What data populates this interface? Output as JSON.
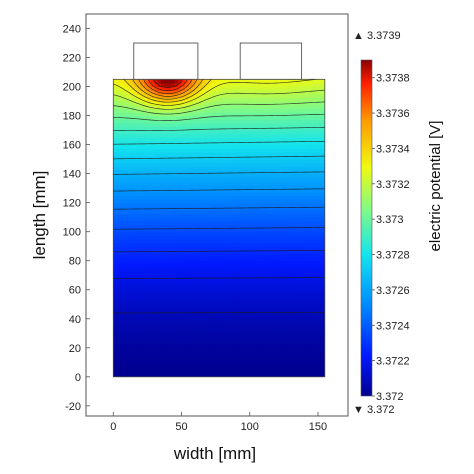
{
  "chart_data": {
    "type": "heatmap",
    "title": "",
    "xlabel": "width [mm]",
    "ylabel": "length [mm]",
    "xlim": [
      -20,
      172
    ],
    "ylim": [
      -27,
      250
    ],
    "x_ticks": [
      "0",
      "50",
      "100",
      "150"
    ],
    "y_ticks": [
      "-20",
      "0",
      "20",
      "40",
      "60",
      "80",
      "100",
      "120",
      "140",
      "160",
      "180",
      "200",
      "220",
      "240"
    ],
    "domain": {
      "cell": {
        "x": [
          0,
          155
        ],
        "y": [
          0,
          205
        ]
      },
      "tabs": [
        {
          "x": [
            15,
            62
          ],
          "y": [
            205,
            230
          ]
        },
        {
          "x": [
            93,
            138
          ],
          "y": [
            205,
            230
          ]
        }
      ]
    },
    "colorbar": {
      "label": "electric potential [V]",
      "min": 3.372,
      "max": 3.3739,
      "tick_labels": [
        "3.3738",
        "3.3736",
        "3.3734",
        "3.3732",
        "3.373",
        "3.3728",
        "3.3726",
        "3.3724",
        "3.3722",
        "3.372"
      ],
      "tick_values": [
        3.3738,
        3.3736,
        3.3734,
        3.3732,
        3.373,
        3.3728,
        3.3726,
        3.3724,
        3.3722,
        3.372
      ],
      "max_marker": "▲ 3.3739",
      "min_marker": "▼ 3.372",
      "colormap": "rainbow"
    },
    "field_peaks": [
      {
        "x": 40,
        "y": 205,
        "value": 3.3739
      },
      {
        "x": 115,
        "y": 205,
        "value": 3.37325
      }
    ],
    "field_min": {
      "x": 78,
      "y": 0,
      "value": 3.372
    },
    "contour_count": 20
  }
}
